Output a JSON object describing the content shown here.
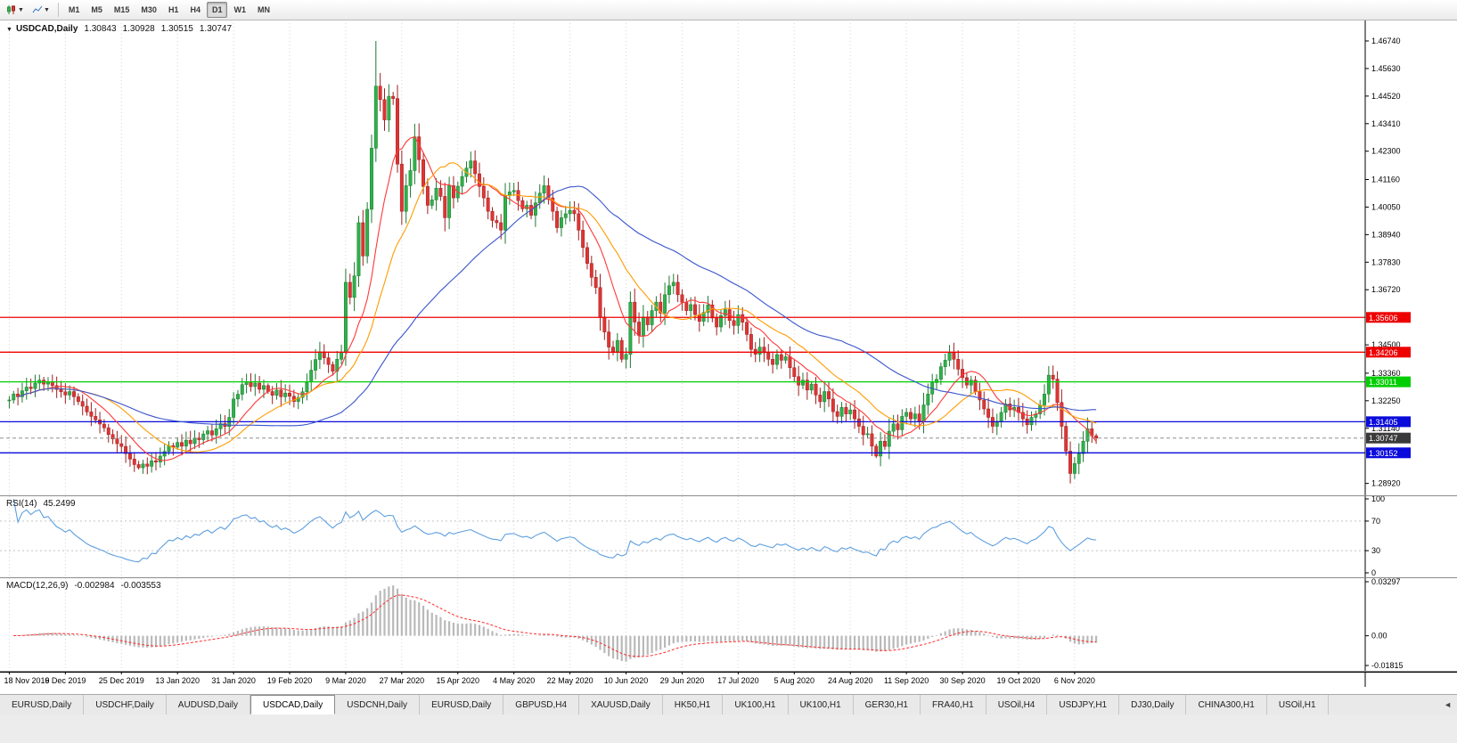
{
  "toolbar": {
    "timeframes": [
      "M1",
      "M5",
      "M15",
      "M30",
      "H1",
      "H4",
      "D1",
      "W1",
      "MN"
    ],
    "active_timeframe": "D1"
  },
  "chart_header": {
    "symbol": "USDCAD,Daily",
    "open": "1.30843",
    "high": "1.30928",
    "low": "1.30515",
    "close": "1.30747"
  },
  "price_axis": {
    "ticks": [
      {
        "label": "1.46740",
        "value": 1.4674
      },
      {
        "label": "1.45630",
        "value": 1.4563
      },
      {
        "label": "1.44520",
        "value": 1.4452
      },
      {
        "label": "1.43410",
        "value": 1.4341
      },
      {
        "label": "1.42300",
        "value": 1.423
      },
      {
        "label": "1.41160",
        "value": 1.4116
      },
      {
        "label": "1.40050",
        "value": 1.4005
      },
      {
        "label": "1.38940",
        "value": 1.3894
      },
      {
        "label": "1.37830",
        "value": 1.3783
      },
      {
        "label": "1.36720",
        "value": 1.3672
      },
      {
        "label": "1.34500",
        "value": 1.345
      },
      {
        "label": "1.33360",
        "value": 1.3336
      },
      {
        "label": "1.32250",
        "value": 1.3225
      },
      {
        "label": "1.31140",
        "value": 1.3114
      },
      {
        "label": "1.28920",
        "value": 1.2892
      }
    ],
    "badges": [
      {
        "label": "1.35606",
        "value": 1.35606,
        "color": "#ee0000"
      },
      {
        "label": "1.34206",
        "value": 1.34206,
        "color": "#ee0000"
      },
      {
        "label": "1.33011",
        "value": 1.33011,
        "color": "#00ce00"
      },
      {
        "label": "1.31405",
        "value": 1.31405,
        "color": "#0b0bdc"
      },
      {
        "label": "1.30747",
        "value": 1.30747,
        "color": "#3a3a3a"
      },
      {
        "label": "1.30152",
        "value": 1.30152,
        "color": "#0b0bdc"
      }
    ]
  },
  "chart_data": {
    "type": "candlestick",
    "symbol": "USDCAD",
    "timeframe": "Daily",
    "ylim": [
      1.2844,
      1.476
    ],
    "x_label_step": 13,
    "x_labels": [
      "18 Nov 2019",
      "6 Dec 2019",
      "25 Dec 2019",
      "13 Jan 2020",
      "31 Jan 2020",
      "19 Feb 2020",
      "9 Mar 2020",
      "27 Mar 2020",
      "15 Apr 2020",
      "4 May 2020",
      "22 May 2020",
      "10 Jun 2020",
      "29 Jun 2020",
      "17 Jul 2020",
      "5 Aug 2020",
      "24 Aug 2020",
      "11 Sep 2020",
      "30 Sep 2020",
      "19 Oct 2020",
      "6 Nov 2020"
    ],
    "closes": [
      1.3228,
      1.3252,
      1.3241,
      1.3265,
      1.328,
      1.3274,
      1.3296,
      1.3308,
      1.3292,
      1.3301,
      1.3286,
      1.327,
      1.3261,
      1.3248,
      1.3262,
      1.3241,
      1.3222,
      1.3203,
      1.318,
      1.3162,
      1.3148,
      1.3131,
      1.3116,
      1.3089,
      1.3071,
      1.3052,
      1.3041,
      1.3012,
      1.299,
      1.2968,
      1.2955,
      1.297,
      1.2961,
      1.2983,
      1.2978,
      1.3002,
      1.3021,
      1.3044,
      1.3038,
      1.3057,
      1.3042,
      1.3066,
      1.3052,
      1.3075,
      1.3068,
      1.3091,
      1.3104,
      1.3087,
      1.3112,
      1.3133,
      1.3121,
      1.3158,
      1.3232,
      1.3251,
      1.329,
      1.3301,
      1.3282,
      1.3296,
      1.3271,
      1.3286,
      1.3262,
      1.3247,
      1.3268,
      1.3241,
      1.3256,
      1.3243,
      1.3222,
      1.3238,
      1.3261,
      1.3302,
      1.3348,
      1.3391,
      1.3422,
      1.3398,
      1.3371,
      1.3344,
      1.3392,
      1.3421,
      1.3702,
      1.3641,
      1.3728,
      1.3942,
      1.3808,
      1.3996,
      1.4242,
      1.4492,
      1.4438,
      1.4356,
      1.4451,
      1.4442,
      1.4178,
      1.3988,
      1.4091,
      1.4152,
      1.4288,
      1.4196,
      1.4088,
      1.4012,
      1.4034,
      1.4081,
      1.4048,
      1.3962,
      1.4091,
      1.4042,
      1.4089,
      1.4128,
      1.4162,
      1.4191,
      1.4139,
      1.4088,
      1.4042,
      1.3988,
      1.3951,
      1.3942,
      1.3912,
      1.4051,
      1.4066,
      1.4072,
      1.4031,
      1.3998,
      1.4012,
      1.3972,
      1.4022,
      1.4061,
      1.4091,
      1.4042,
      1.3988,
      1.3922,
      1.3962,
      1.3978,
      1.3992,
      1.3978,
      1.3912,
      1.3842,
      1.3778,
      1.3722,
      1.3681,
      1.3562,
      1.3502,
      1.3441,
      1.3422,
      1.3468,
      1.3392,
      1.3412,
      1.3622,
      1.3542,
      1.3488,
      1.3562,
      1.3531,
      1.3588,
      1.3622,
      1.3578,
      1.3652,
      1.3688,
      1.3702,
      1.3652,
      1.3621,
      1.3588,
      1.3612,
      1.3572,
      1.3545,
      1.3581,
      1.3611,
      1.3558,
      1.3522,
      1.3568,
      1.3592,
      1.3548,
      1.3528,
      1.3572,
      1.3541,
      1.3492,
      1.3432,
      1.3412,
      1.3441,
      1.3418,
      1.3392,
      1.3371,
      1.3411,
      1.3388,
      1.3402,
      1.3358,
      1.3322,
      1.3288,
      1.3308,
      1.3268,
      1.3292,
      1.3248,
      1.3221,
      1.3262,
      1.3232,
      1.3181,
      1.3162,
      1.3198,
      1.3172,
      1.3188,
      1.3152,
      1.3122,
      1.3088,
      1.3092,
      1.3042,
      1.3002,
      1.3062,
      1.3041,
      1.3102,
      1.3132,
      1.3108,
      1.3162,
      1.3178,
      1.3152,
      1.3172,
      1.3141,
      1.3208,
      1.3252,
      1.3298,
      1.3311,
      1.3362,
      1.3388,
      1.3418,
      1.3392,
      1.3352,
      1.3318,
      1.3288,
      1.3308,
      1.3262,
      1.3228,
      1.3192,
      1.3158,
      1.3122,
      1.3142,
      1.3178,
      1.3212,
      1.3188,
      1.3198,
      1.3178,
      1.3152,
      1.3128,
      1.3158,
      1.3172,
      1.3208,
      1.3252,
      1.3328,
      1.3312,
      1.3218,
      1.3122,
      1.3022,
      1.2932,
      1.2972,
      1.3012,
      1.3062,
      1.3112,
      1.3084,
      1.30747
    ],
    "wick_overrides": {
      "30": {
        "low": 1.2948
      },
      "85": {
        "high": 1.4674
      },
      "86": {
        "high": 1.4545
      },
      "201": {
        "low": 1.2994
      },
      "246": {
        "low": 1.2892
      },
      "252": {
        "high": 1.30928,
        "low": 1.30515
      }
    },
    "hlines": [
      {
        "price": 1.35606,
        "color": "#ee0000"
      },
      {
        "price": 1.34206,
        "color": "#ee0000"
      },
      {
        "price": 1.33011,
        "color": "#00ce00"
      },
      {
        "price": 1.31405,
        "color": "#0b0bdc"
      },
      {
        "price": 1.30152,
        "color": "#0b0bdc"
      }
    ],
    "current_price": 1.30747,
    "moving_averages": [
      {
        "period": 10,
        "color": "#ff3838"
      },
      {
        "period": 20,
        "color": "#ff9c00"
      },
      {
        "period": 50,
        "color": "#3a55cc"
      }
    ],
    "colors": {
      "up": "#2fb14a",
      "up_dark": "#1d7a31",
      "down": "#e03434",
      "down_dark": "#9e1f1f"
    },
    "indicators": [
      {
        "name": "RSI",
        "params": "RSI(14)",
        "value": "45.2499",
        "period": 14,
        "color": "#5e9fe0",
        "ylim": [
          0,
          100
        ],
        "level_lines": [
          70,
          30
        ],
        "axis_labels": [
          {
            "label": "100",
            "value": 100
          },
          {
            "label": "70",
            "value": 70
          },
          {
            "label": "30",
            "value": 30
          },
          {
            "label": "0",
            "value": 0
          }
        ]
      },
      {
        "name": "MACD",
        "params": "MACD(12,26,9)",
        "value_main": "-0.002984",
        "value_signal": "-0.003553",
        "fast": 12,
        "slow": 26,
        "signal": 9,
        "hist_color": "#b9b9b9",
        "signal_color": "#ff2a2a",
        "ylim": [
          -0.01815,
          0.03297
        ],
        "axis_labels": [
          {
            "label": "0.03297",
            "value": 0.03297
          },
          {
            "label": "0.00",
            "value": 0
          },
          {
            "label": "-0.01815",
            "value": -0.01815
          }
        ]
      }
    ]
  },
  "bottom_tabs": {
    "active_index": 3,
    "tabs": [
      {
        "label": "EURUSD,Daily"
      },
      {
        "label": "USDCHF,Daily"
      },
      {
        "label": "AUDUSD,Daily"
      },
      {
        "label": "USDCAD,Daily"
      },
      {
        "label": "USDCNH,Daily"
      },
      {
        "label": "EURUSD,Daily"
      },
      {
        "label": "GBPUSD,H4"
      },
      {
        "label": "XAUUSD,Daily"
      },
      {
        "label": "HK50,H1"
      },
      {
        "label": "UK100,H1"
      },
      {
        "label": "UK100,H1"
      },
      {
        "label": "GER30,H1"
      },
      {
        "label": "FRA40,H1"
      },
      {
        "label": "USOil,H4"
      },
      {
        "label": "USDJPY,H1"
      },
      {
        "label": "DJ30,Daily"
      },
      {
        "label": "CHINA300,H1"
      },
      {
        "label": "USOil,H1"
      }
    ]
  }
}
